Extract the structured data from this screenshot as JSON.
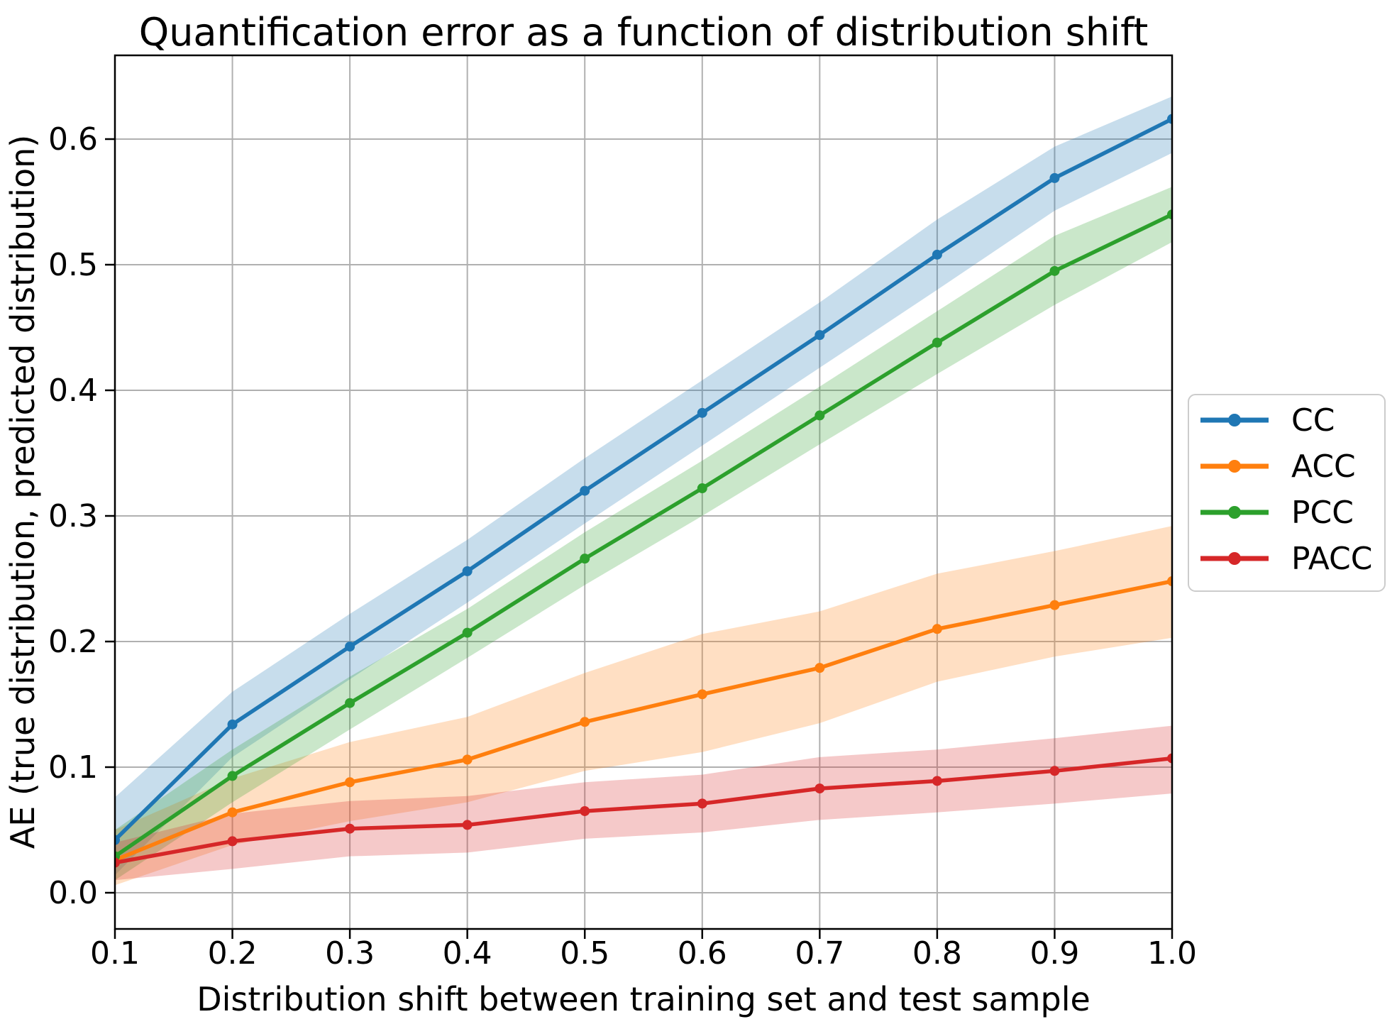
{
  "title": "Quantification error as a function of distribution shift",
  "x_axis": {
    "label": "Distribution shift between training set and test sample",
    "tick_labels": [
      "0.1",
      "0.2",
      "0.3",
      "0.4",
      "0.5",
      "0.6",
      "0.7",
      "0.8",
      "0.9",
      "1.0"
    ]
  },
  "y_axis": {
    "label": "AE (true distribution, predicted distribution)",
    "tick_labels": [
      "0.0",
      "0.1",
      "0.2",
      "0.3",
      "0.4",
      "0.5",
      "0.6"
    ]
  },
  "legend": {
    "position": "center-right-outside",
    "entries": [
      "CC",
      "ACC",
      "PCC",
      "PACC"
    ]
  },
  "chart_data": {
    "type": "line",
    "title": "Quantification error as a function of distribution shift",
    "xlabel": "Distribution shift between training set and test sample",
    "ylabel": "AE (true distribution, predicted distribution)",
    "grid": true,
    "legend_position": "center right outside",
    "xlim": [
      0.1,
      1.0
    ],
    "ylim": [
      -0.029,
      0.667
    ],
    "band_alpha": 0.25,
    "grid_color": "#b0b0b0",
    "x": [
      0.1,
      0.2,
      0.3,
      0.4,
      0.5,
      0.6,
      0.7,
      0.8,
      0.9,
      1.0
    ],
    "series": [
      {
        "name": "CC",
        "color": "#1f77b4",
        "values": [
          0.042,
          0.134,
          0.196,
          0.256,
          0.32,
          0.382,
          0.444,
          0.508,
          0.569,
          0.616
        ],
        "band_low": [
          0.014,
          0.108,
          0.17,
          0.231,
          0.294,
          0.356,
          0.418,
          0.48,
          0.543,
          0.589
        ],
        "band_high": [
          0.076,
          0.16,
          0.222,
          0.281,
          0.346,
          0.408,
          0.47,
          0.536,
          0.594,
          0.634
        ]
      },
      {
        "name": "ACC",
        "color": "#ff7f0e",
        "values": [
          0.026,
          0.064,
          0.088,
          0.106,
          0.136,
          0.158,
          0.179,
          0.21,
          0.229,
          0.248
        ],
        "band_low": [
          0.006,
          0.038,
          0.057,
          0.072,
          0.097,
          0.112,
          0.135,
          0.168,
          0.188,
          0.203
        ],
        "band_high": [
          0.05,
          0.091,
          0.12,
          0.14,
          0.175,
          0.206,
          0.224,
          0.254,
          0.272,
          0.292
        ]
      },
      {
        "name": "PCC",
        "color": "#2ca02c",
        "values": [
          0.029,
          0.093,
          0.151,
          0.207,
          0.266,
          0.322,
          0.38,
          0.438,
          0.495,
          0.54
        ],
        "band_low": [
          0.01,
          0.072,
          0.13,
          0.187,
          0.245,
          0.3,
          0.357,
          0.413,
          0.468,
          0.518
        ],
        "band_high": [
          0.05,
          0.114,
          0.172,
          0.226,
          0.287,
          0.344,
          0.403,
          0.463,
          0.523,
          0.562
        ]
      },
      {
        "name": "PACC",
        "color": "#d62728",
        "values": [
          0.024,
          0.041,
          0.051,
          0.054,
          0.065,
          0.071,
          0.083,
          0.089,
          0.097,
          0.107
        ],
        "band_low": [
          0.01,
          0.019,
          0.029,
          0.032,
          0.043,
          0.048,
          0.058,
          0.064,
          0.071,
          0.079
        ],
        "band_high": [
          0.04,
          0.063,
          0.073,
          0.077,
          0.088,
          0.094,
          0.108,
          0.114,
          0.123,
          0.133
        ]
      }
    ]
  }
}
